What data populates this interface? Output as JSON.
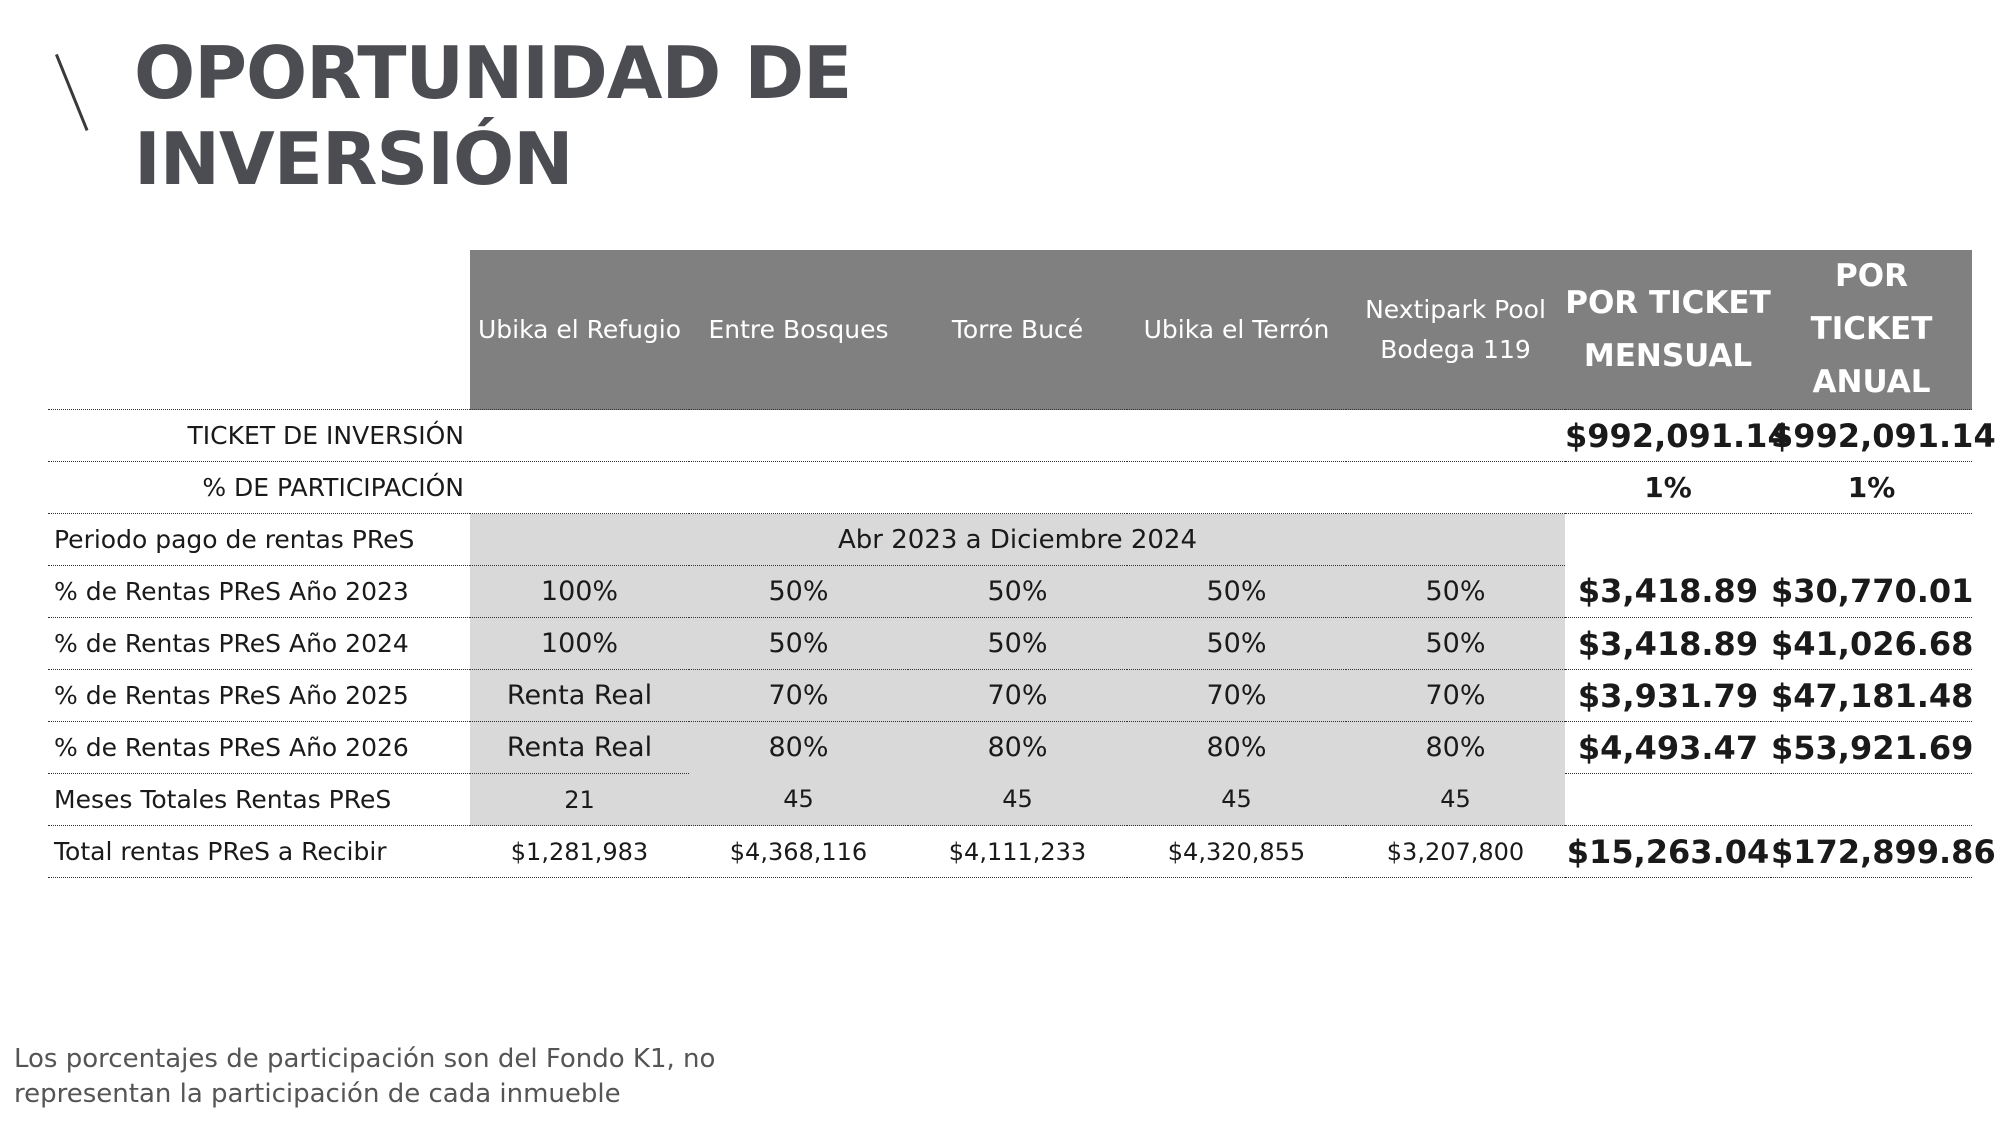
{
  "title": {
    "line1": "OPORTUNIDAD DE",
    "line2": "INVERSIÓN"
  },
  "table": {
    "headers": [
      "",
      "Ubika el Refugio",
      "Entre Bosques",
      "Torre Bucé",
      "Ubika el Terrón",
      "Nextipark Pool Bodega 119",
      "POR TICKET MENSUAL",
      "POR TICKET ANUAL"
    ],
    "ticket": {
      "label": "TICKET DE INVERSIÓN",
      "mensual": "$992,091.14",
      "anual": "$992,091.14"
    },
    "participacion": {
      "label": "% DE PARTICIPACIÓN",
      "mensual": "1%",
      "anual": "1%"
    },
    "periodo": {
      "label": "Periodo pago de rentas PReS",
      "value": "Abr 2023 a Diciembre 2024"
    },
    "rows": [
      {
        "label": "% de Rentas PReS Año 2023",
        "values": [
          "100%",
          "50%",
          "50%",
          "50%",
          "50%"
        ],
        "mensual": "$3,418.89",
        "anual": "$30,770.01"
      },
      {
        "label": "% de Rentas PReS Año 2024",
        "values": [
          "100%",
          "50%",
          "50%",
          "50%",
          "50%"
        ],
        "mensual": "$3,418.89",
        "anual": "$41,026.68"
      },
      {
        "label": "% de Rentas PReS Año 2025",
        "values": [
          "Renta Real",
          "70%",
          "70%",
          "70%",
          "70%"
        ],
        "mensual": "$3,931.79",
        "anual": "$47,181.48"
      },
      {
        "label": "% de Rentas PReS Año 2026",
        "values": [
          "Renta Real",
          "80%",
          "80%",
          "80%",
          "80%"
        ],
        "mensual": "$4,493.47",
        "anual": "$53,921.69"
      }
    ],
    "meses": {
      "label": "Meses Totales Rentas PReS",
      "values": [
        "21",
        "45",
        "45",
        "45",
        "45"
      ]
    },
    "total": {
      "label": "Total rentas PReS a Recibir",
      "values": [
        "$1,281,983",
        "$4,368,116",
        "$4,111,233",
        "$4,320,855",
        "$3,207,800"
      ],
      "mensual": "$15,263.04",
      "anual": "$172,899.86"
    }
  },
  "footnote": {
    "line1": "Los porcentajes de participación son del Fondo K1, no",
    "line2": "representan la participación de cada inmueble"
  }
}
